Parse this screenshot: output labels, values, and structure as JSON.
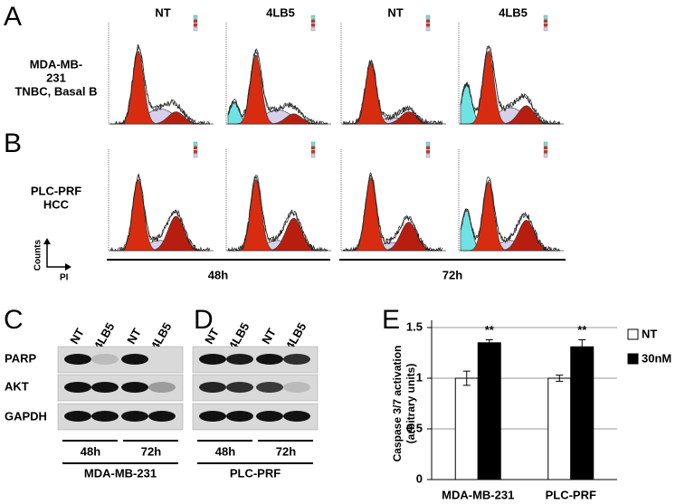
{
  "panel_a": {
    "label": "A",
    "columns": [
      "NT",
      "4LB5",
      "NT",
      "4LB5"
    ],
    "row_label": [
      "MDA-MB-",
      "231",
      "TNBC, Basal B"
    ]
  },
  "panel_b": {
    "label": "B",
    "row_label": [
      "PLC-PRF",
      "HCC"
    ]
  },
  "axes_icon": {
    "y": "Counts",
    "x": "PI"
  },
  "timepoints": [
    "48h",
    "72h"
  ],
  "panel_c": {
    "label": "C",
    "lanes": [
      "NT",
      "4LB5",
      "NT",
      "4LB5"
    ],
    "rows": [
      "PARP",
      "AKT",
      "GAPDH"
    ],
    "times": [
      "48h",
      "72h"
    ],
    "cell_line": "MDA-MB-231"
  },
  "panel_d": {
    "label": "D",
    "lanes": [
      "NT",
      "4LB5",
      "NT",
      "4LB5"
    ],
    "times": [
      "48h",
      "72h"
    ],
    "cell_line": "PLC-PRF"
  },
  "chart_data": {
    "type": "bar",
    "label": "E",
    "y_label_lines": [
      "Caspase 3/7 activation",
      "(arbitrary units)"
    ],
    "categories": [
      "MDA-MB-231",
      "PLC-PRF"
    ],
    "series": [
      {
        "name": "NT",
        "color": "#ffffff",
        "values": [
          1,
          1
        ],
        "errors": [
          0.07,
          0.03
        ]
      },
      {
        "name": "30nM",
        "color": "#000000",
        "values": [
          1.35,
          1.31
        ],
        "errors": [
          0.03,
          0.07
        ]
      }
    ],
    "annotations": [
      "**",
      "**"
    ],
    "ylim": [
      0,
      1.5
    ],
    "yticks": [
      0,
      0.5,
      1,
      1.5
    ],
    "grid": true
  }
}
